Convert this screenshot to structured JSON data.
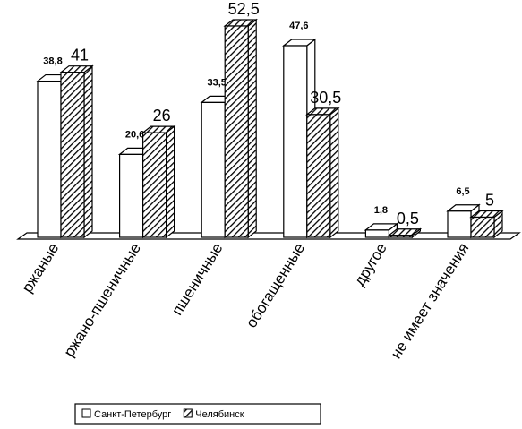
{
  "chart_data": {
    "type": "bar3d",
    "categories": [
      "ржаные",
      "ржано-пшеничные",
      "пшеничные",
      "обогащенные",
      "другое",
      "не имеет значения"
    ],
    "series": [
      {
        "name": "Санкт-Петербург",
        "color": "#ffffff",
        "values": [
          38.8,
          20.6,
          33.5,
          47.6,
          1.8,
          6.5
        ],
        "value_labels": [
          "38,8",
          "20,6",
          "33,5",
          "47,6",
          "1,8",
          "6,5"
        ]
      },
      {
        "name": "Челябинск",
        "color": "hatch",
        "values": [
          41,
          26,
          52.5,
          30.5,
          0.5,
          5
        ],
        "value_labels": [
          "41",
          "26",
          "52,5",
          "30,5",
          "0,5",
          "5"
        ]
      }
    ],
    "legend": "bottom"
  }
}
